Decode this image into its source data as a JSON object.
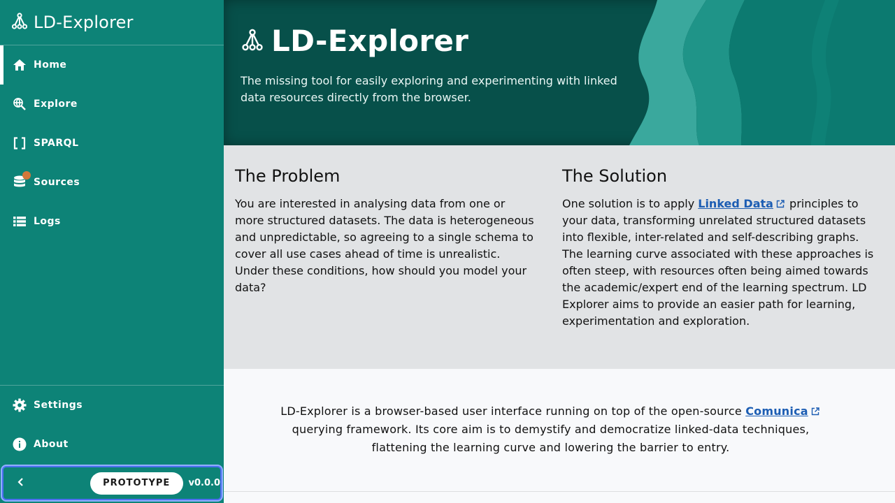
{
  "sidebar": {
    "brand": "LD-Explorer",
    "items": [
      {
        "label": "Home",
        "icon": "home-icon",
        "active": true
      },
      {
        "label": "Explore",
        "icon": "explore-icon"
      },
      {
        "label": "SPARQL",
        "icon": "brackets-icon"
      },
      {
        "label": "Sources",
        "icon": "database-icon",
        "badge": true
      },
      {
        "label": "Logs",
        "icon": "list-icon"
      }
    ],
    "bottom_items": [
      {
        "label": "Settings",
        "icon": "gear-icon"
      },
      {
        "label": "About",
        "icon": "info-icon"
      }
    ],
    "prototype_label": "PROTOTYPE",
    "version": "v0.0.0"
  },
  "hero": {
    "title": "LD-Explorer",
    "subtitle": "The missing tool for easily exploring and experimenting with linked data resources directly from the browser."
  },
  "problem": {
    "heading": "The Problem",
    "text": "You are interested in analysing data from one or more structured datasets. The data is heterogeneous and unpredictable, so agreeing to a single schema to cover all use cases ahead of time is unrealistic. Under these conditions, how should you model your data?"
  },
  "solution": {
    "heading": "The Solution",
    "text_before": "One solution is to apply",
    "link": "Linked Data",
    "text_after": "principles to your data, transforming unrelated structured datasets into flexible, inter-related and self-describing graphs. The learning curve associated with these approaches is often steep, with resources often being aimed towards the academic/expert end of the learning spectrum. LD Explorer aims to provide an easier path for learning, experimentation and exploration."
  },
  "footer_text": {
    "before": "LD-Explorer is a browser-based user interface running on top of the open-source",
    "link": "Comunica",
    "after": "querying framework. Its core aim is to demystify and democratize linked-data techniques, flattening the learning curve and lowering the barrier to entry."
  },
  "colors": {
    "sidebar": "#0d8377",
    "hero": "#07504a",
    "badge": "#d4773a",
    "link": "#1c5db3",
    "focus": "#4a6ef0"
  }
}
